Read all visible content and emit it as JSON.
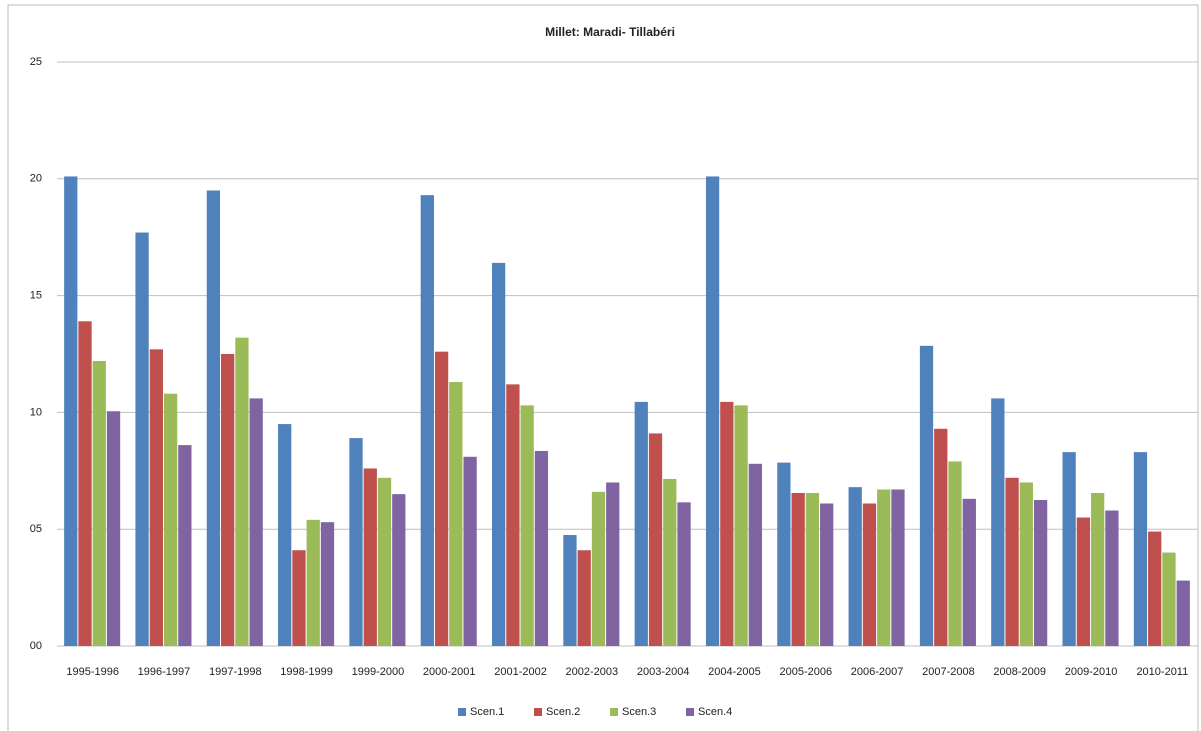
{
  "chart_data": {
    "type": "bar",
    "title": "Millet: Maradi- Tillabéri",
    "categories": [
      "1995-1996",
      "1996-1997",
      "1997-1998",
      "1998-1999",
      "1999-2000",
      "2000-2001",
      "2001-2002",
      "2002-2003",
      "2003-2004",
      "2004-2005",
      "2005-2006",
      "2006-2007",
      "2007-2008",
      "2008-2009",
      "2009-2010",
      "2010-2011"
    ],
    "series": [
      {
        "name": "Scen.1",
        "color": "#4f81bd",
        "values": [
          20.1,
          17.7,
          19.5,
          9.5,
          8.9,
          19.3,
          16.4,
          4.75,
          10.45,
          20.1,
          7.85,
          6.8,
          12.85,
          10.6,
          8.3,
          8.3
        ]
      },
      {
        "name": "Scen.2",
        "color": "#c0504d",
        "values": [
          13.9,
          12.7,
          12.5,
          4.1,
          7.6,
          12.6,
          11.2,
          4.1,
          9.1,
          10.45,
          6.55,
          6.1,
          9.3,
          7.2,
          5.5,
          4.9
        ]
      },
      {
        "name": "Scen.3",
        "color": "#9bbb59",
        "values": [
          12.2,
          10.8,
          13.2,
          5.4,
          7.2,
          11.3,
          10.3,
          6.6,
          7.15,
          10.3,
          6.55,
          6.7,
          7.9,
          7.0,
          6.55,
          4.0
        ]
      },
      {
        "name": "Scen.4",
        "color": "#8064a2",
        "values": [
          10.05,
          8.6,
          10.6,
          5.3,
          6.5,
          8.1,
          8.35,
          7.0,
          6.15,
          7.8,
          6.1,
          6.7,
          6.3,
          6.25,
          5.8,
          2.8
        ]
      }
    ],
    "ylim": [
      0,
      25
    ],
    "yticks": [
      {
        "value": 0,
        "label": "00"
      },
      {
        "value": 5,
        "label": "05"
      },
      10,
      15,
      20,
      25
    ],
    "grid": true,
    "legend": "bottom"
  }
}
